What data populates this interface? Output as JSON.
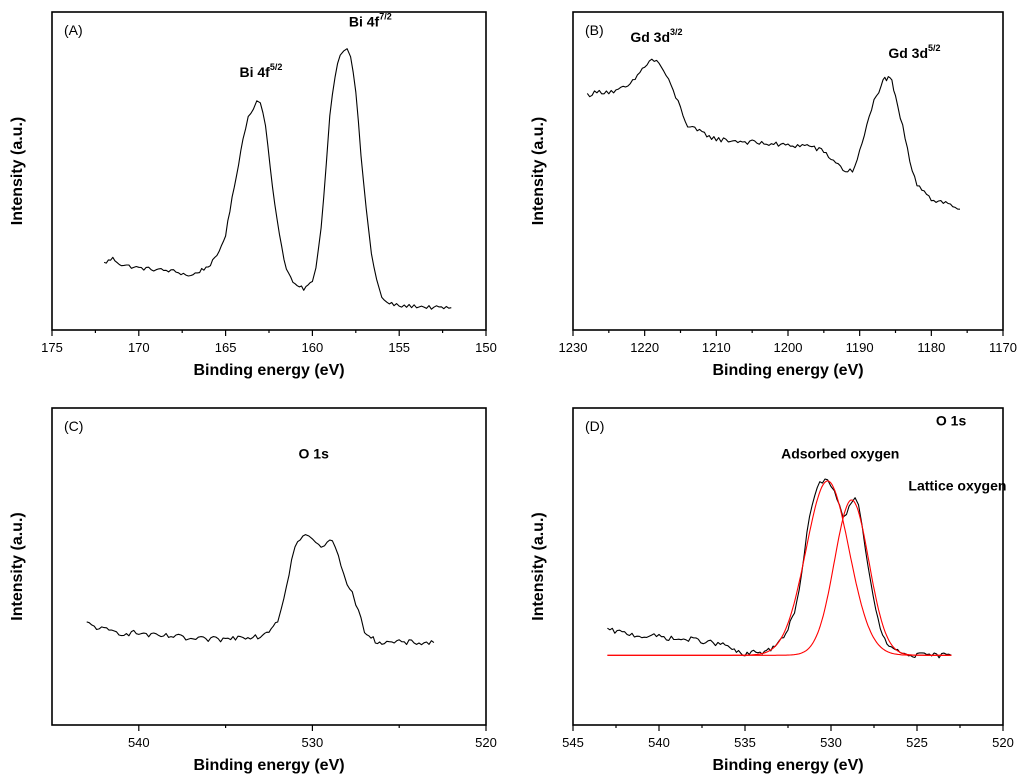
{
  "colors": {
    "data": "#000000",
    "fit": "#ff0000",
    "axis": "#000000"
  },
  "chart_data": [
    {
      "tag": "(A)",
      "type": "line",
      "xlabel": "Binding energy (eV)",
      "ylabel": "Intensity (a.u.)",
      "xlim": [
        175,
        150
      ],
      "ylim": [
        0,
        1
      ],
      "x_reversed": true,
      "xticks": [
        175,
        170,
        165,
        160,
        155,
        150
      ],
      "y_tick_labels": false,
      "annotations": [
        {
          "base": "Bi 4f",
          "sup": "5/2",
          "x": 164.2,
          "y": 0.795
        },
        {
          "base": "Bi 4f",
          "sup": "7/2",
          "x": 157.9,
          "y": 0.955
        }
      ],
      "series": [
        {
          "style": "data",
          "noise": 0.006,
          "x": [
            172,
            171.5,
            171,
            170,
            169,
            168,
            167,
            166.5,
            166,
            165.5,
            165,
            164.5,
            164,
            163.7,
            163.4,
            163.2,
            163,
            162.7,
            162.3,
            161.9,
            161.5,
            161,
            160.5,
            160,
            159.8,
            159.5,
            159.2,
            159,
            158.7,
            158.4,
            158.2,
            158,
            157.8,
            157.5,
            157.2,
            156.9,
            156.6,
            156.3,
            156,
            155.7,
            155.3,
            155,
            154,
            153,
            152
          ],
          "y": [
            0.21,
            0.225,
            0.205,
            0.195,
            0.19,
            0.185,
            0.17,
            0.185,
            0.2,
            0.23,
            0.3,
            0.45,
            0.6,
            0.67,
            0.7,
            0.72,
            0.72,
            0.64,
            0.45,
            0.3,
            0.19,
            0.14,
            0.13,
            0.15,
            0.2,
            0.32,
            0.52,
            0.68,
            0.8,
            0.87,
            0.88,
            0.89,
            0.86,
            0.75,
            0.55,
            0.38,
            0.24,
            0.16,
            0.1,
            0.085,
            0.08,
            0.075,
            0.075,
            0.07,
            0.07
          ]
        }
      ]
    },
    {
      "tag": "(B)",
      "type": "line",
      "xlabel": "Binding energy (eV)",
      "ylabel": "Intensity (a.u.)",
      "xlim": [
        1230,
        1170
      ],
      "ylim": [
        0,
        1
      ],
      "x_reversed": true,
      "xticks": [
        1230,
        1220,
        1210,
        1200,
        1190,
        1180,
        1170
      ],
      "y_tick_labels": false,
      "annotations": [
        {
          "base": "Gd 3d",
          "sup": "3/2",
          "x": 1222,
          "y": 0.905
        },
        {
          "base": "Gd 3d",
          "sup": "5/2",
          "x": 1186,
          "y": 0.855
        }
      ],
      "series": [
        {
          "style": "data",
          "noise": 0.008,
          "x": [
            1228,
            1226,
            1224,
            1222,
            1221,
            1220,
            1219,
            1218,
            1217,
            1216,
            1215,
            1214,
            1212,
            1210,
            1205,
            1200,
            1197,
            1195,
            1193,
            1192,
            1191,
            1190,
            1189,
            1188,
            1187,
            1186.5,
            1186,
            1185.5,
            1185,
            1184,
            1183,
            1182,
            1181,
            1180,
            1178,
            1176
          ],
          "y": [
            0.74,
            0.75,
            0.75,
            0.77,
            0.8,
            0.83,
            0.85,
            0.84,
            0.8,
            0.75,
            0.7,
            0.64,
            0.62,
            0.6,
            0.59,
            0.58,
            0.58,
            0.56,
            0.52,
            0.5,
            0.5,
            0.56,
            0.64,
            0.72,
            0.77,
            0.79,
            0.79,
            0.78,
            0.73,
            0.64,
            0.53,
            0.46,
            0.44,
            0.41,
            0.4,
            0.38
          ]
        }
      ]
    },
    {
      "tag": "(C)",
      "type": "line",
      "xlabel": "Binding energy (eV)",
      "ylabel": "Intensity (a.u.)",
      "xlim": [
        545,
        520
      ],
      "ylim": [
        0,
        1
      ],
      "x_reversed": true,
      "xticks": [
        540,
        530,
        520
      ],
      "y_tick_labels": false,
      "annotations": [
        {
          "text": "O 1s",
          "x": 530.8,
          "y": 0.84
        }
      ],
      "series": [
        {
          "style": "data",
          "noise": 0.009,
          "x": [
            543,
            542,
            541,
            540,
            539,
            538,
            537,
            536,
            535,
            534,
            533,
            532.5,
            532,
            531.8,
            531.5,
            531.2,
            531,
            530.7,
            530.4,
            530.2,
            530,
            529.8,
            529.5,
            529.3,
            529,
            528.7,
            528.5,
            528.2,
            528,
            527.7,
            527.5,
            527.2,
            527,
            526.5,
            526,
            525,
            524,
            523
          ],
          "y": [
            0.32,
            0.3,
            0.29,
            0.29,
            0.28,
            0.28,
            0.27,
            0.27,
            0.27,
            0.28,
            0.28,
            0.3,
            0.33,
            0.37,
            0.44,
            0.52,
            0.56,
            0.59,
            0.6,
            0.59,
            0.59,
            0.57,
            0.56,
            0.57,
            0.58,
            0.57,
            0.53,
            0.48,
            0.45,
            0.42,
            0.38,
            0.33,
            0.3,
            0.27,
            0.26,
            0.26,
            0.26,
            0.26
          ]
        }
      ]
    },
    {
      "tag": "(D)",
      "type": "line",
      "xlabel": "Binding energy (eV)",
      "ylabel": "Intensity (a.u.)",
      "xlim": [
        545,
        520
      ],
      "ylim": [
        0,
        1
      ],
      "x_reversed": true,
      "xticks": [
        545,
        540,
        535,
        530,
        525,
        520
      ],
      "y_tick_labels": false,
      "annotations": [
        {
          "text": "O 1s",
          "x": 523.9,
          "y": 0.945
        },
        {
          "text": "Adsorbed oxygen",
          "x": 532.9,
          "y": 0.84
        },
        {
          "text": "Lattice oxygen",
          "x": 525.5,
          "y": 0.74
        }
      ],
      "series": [
        {
          "style": "data",
          "noise": 0.008,
          "x": [
            543,
            542,
            541,
            540,
            539,
            538,
            537,
            536,
            535.5,
            535,
            534.5,
            534,
            533.5,
            533,
            532.5,
            532,
            531.7,
            531.4,
            531.1,
            530.8,
            530.5,
            530.2,
            530,
            529.8,
            529.5,
            529.3,
            529.1,
            528.8,
            528.6,
            528.4,
            528.2,
            528,
            527.7,
            527.4,
            527,
            526.5,
            526,
            525.5,
            525,
            524,
            523
          ],
          "y": [
            0.3,
            0.29,
            0.28,
            0.28,
            0.27,
            0.27,
            0.26,
            0.25,
            0.23,
            0.22,
            0.23,
            0.23,
            0.24,
            0.26,
            0.3,
            0.38,
            0.48,
            0.6,
            0.7,
            0.75,
            0.77,
            0.77,
            0.76,
            0.74,
            0.69,
            0.66,
            0.67,
            0.7,
            0.71,
            0.69,
            0.63,
            0.56,
            0.45,
            0.36,
            0.28,
            0.24,
            0.23,
            0.22,
            0.22,
            0.22,
            0.22
          ]
        },
        {
          "style": "fit",
          "model": "gaussian",
          "center": 530.2,
          "sigma": 1.25,
          "amplitude": 0.55,
          "baseline": 0.22,
          "x_range": [
            543,
            523
          ]
        },
        {
          "style": "fit",
          "model": "gaussian",
          "center": 528.8,
          "sigma": 1.0,
          "amplitude": 0.49,
          "baseline": 0.22,
          "x_range": [
            543,
            523
          ]
        }
      ]
    }
  ]
}
